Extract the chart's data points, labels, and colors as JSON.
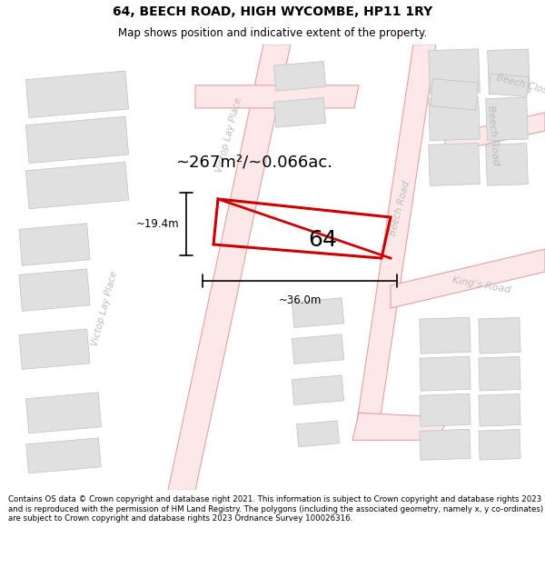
{
  "title": "64, BEECH ROAD, HIGH WYCOMBE, HP11 1RY",
  "subtitle": "Map shows position and indicative extent of the property.",
  "footer": "Contains OS data © Crown copyright and database right 2021. This information is subject to Crown copyright and database rights 2023 and is reproduced with the permission of HM Land Registry. The polygons (including the associated geometry, namely x, y co-ordinates) are subject to Crown copyright and database rights 2023 Ordnance Survey 100026316.",
  "map_bg": "#f7f7f7",
  "fig_bg": "#ffffff",
  "road_fill": "#fce8e8",
  "road_edge": "#e8a0a0",
  "building_fill": "#e0e0e0",
  "building_edge": "#c0c0c0",
  "property_color": "#cc0000",
  "property_label": "64",
  "area_text": "~267m²/~0.066ac.",
  "dim_width": "~36.0m",
  "dim_height": "~19.4m",
  "street_label_color": "#bbbbbb",
  "title_fontsize": 10,
  "subtitle_fontsize": 8.5,
  "footer_fontsize": 6.2
}
